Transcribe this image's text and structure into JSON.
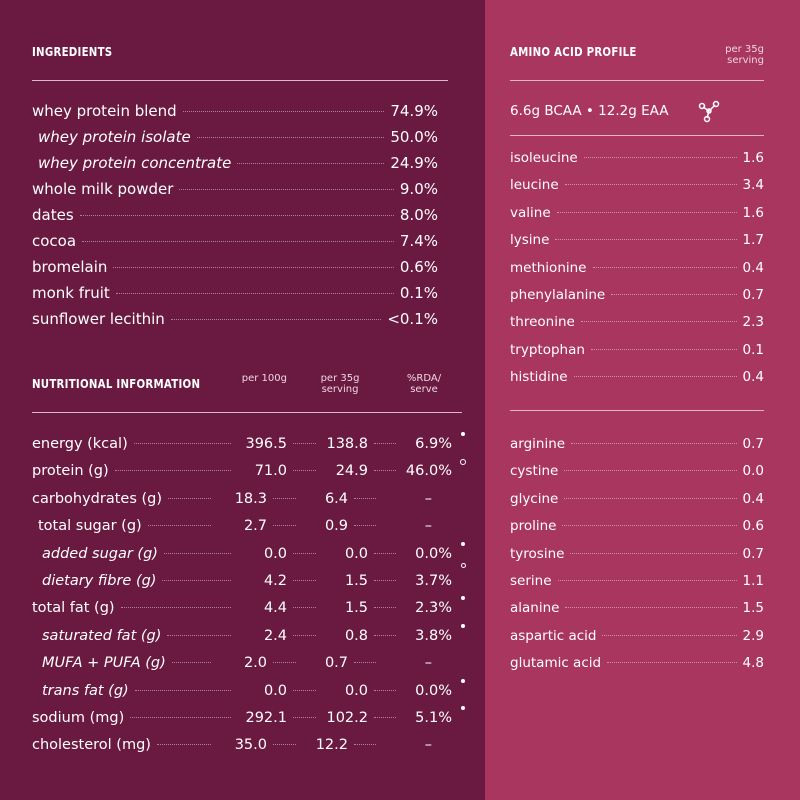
{
  "ingredients": {
    "title": "INGREDIENTS",
    "items": [
      {
        "name": "whey protein blend",
        "value": "74.9%",
        "parts": [
          {
            "name": "whey protein isolate",
            "value": "50.0%"
          },
          {
            "name": "whey protein concentrate",
            "value": "24.9%"
          }
        ]
      },
      {
        "name": "whole milk powder",
        "value": "9.0%"
      },
      {
        "name": "dates",
        "value": "8.0%"
      },
      {
        "name": "cocoa",
        "value": "7.4%"
      },
      {
        "name": "bromelain",
        "value": "0.6%"
      },
      {
        "name": "monk fruit",
        "value": "0.1%"
      },
      {
        "name": "sunflower lecithin",
        "value": "<0.1%"
      }
    ]
  },
  "nutrition": {
    "title": "NUTRITIONAL INFORMATION",
    "columns": [
      "per 100g",
      "per 35g serving",
      "%RDA/ serve"
    ],
    "rows": [
      [
        "energy (kcal)",
        "396.5",
        "138.8",
        "6.9%"
      ],
      [
        "protein (g)",
        "71.0",
        "24.9",
        "46.0%"
      ],
      [
        "carbohydrates (g)",
        "18.3",
        "6.4",
        "–"
      ],
      [
        "total sugar (g)",
        "2.7",
        "0.9",
        "–"
      ],
      [
        "added sugar (g)",
        "0.0",
        "0.0",
        "0.0%"
      ],
      [
        "dietary fibre (g)",
        "4.2",
        "1.5",
        "3.7%"
      ],
      [
        "total fat (g)",
        "4.4",
        "1.5",
        "2.3%"
      ],
      [
        "saturated fat (g)",
        "2.4",
        "0.8",
        "3.8%"
      ],
      [
        "MUFA + PUFA (g)",
        "2.0",
        "0.7",
        "–"
      ],
      [
        "trans fat (g)",
        "0.0",
        "0.0",
        "0.0%"
      ],
      [
        "sodium (mg)",
        "292.1",
        "102.2",
        "5.1%"
      ],
      [
        "cholesterol (mg)",
        "35.0",
        "12.2",
        "–"
      ]
    ]
  },
  "amino": {
    "title": "AMINO ACID PROFILE",
    "basis": "per 35g serving",
    "summary": "6.6g BCAA • 12.2g EAA",
    "essential": [
      [
        "isoleucine",
        "1.6"
      ],
      [
        "leucine",
        "3.4"
      ],
      [
        "valine",
        "1.6"
      ],
      [
        "lysine",
        "1.7"
      ],
      [
        "methionine",
        "0.4"
      ],
      [
        "phenylalanine",
        "0.7"
      ],
      [
        "threonine",
        "2.3"
      ],
      [
        "tryptophan",
        "0.1"
      ],
      [
        "histidine",
        "0.4"
      ]
    ],
    "non_essential": [
      [
        "arginine",
        "0.7"
      ],
      [
        "cystine",
        "0.0"
      ],
      [
        "glycine",
        "0.4"
      ],
      [
        "proline",
        "0.6"
      ],
      [
        "tyrosine",
        "0.7"
      ],
      [
        "serine",
        "1.1"
      ],
      [
        "alanine",
        "1.5"
      ],
      [
        "aspartic acid",
        "2.9"
      ],
      [
        "glutamic acid",
        "4.8"
      ]
    ]
  }
}
